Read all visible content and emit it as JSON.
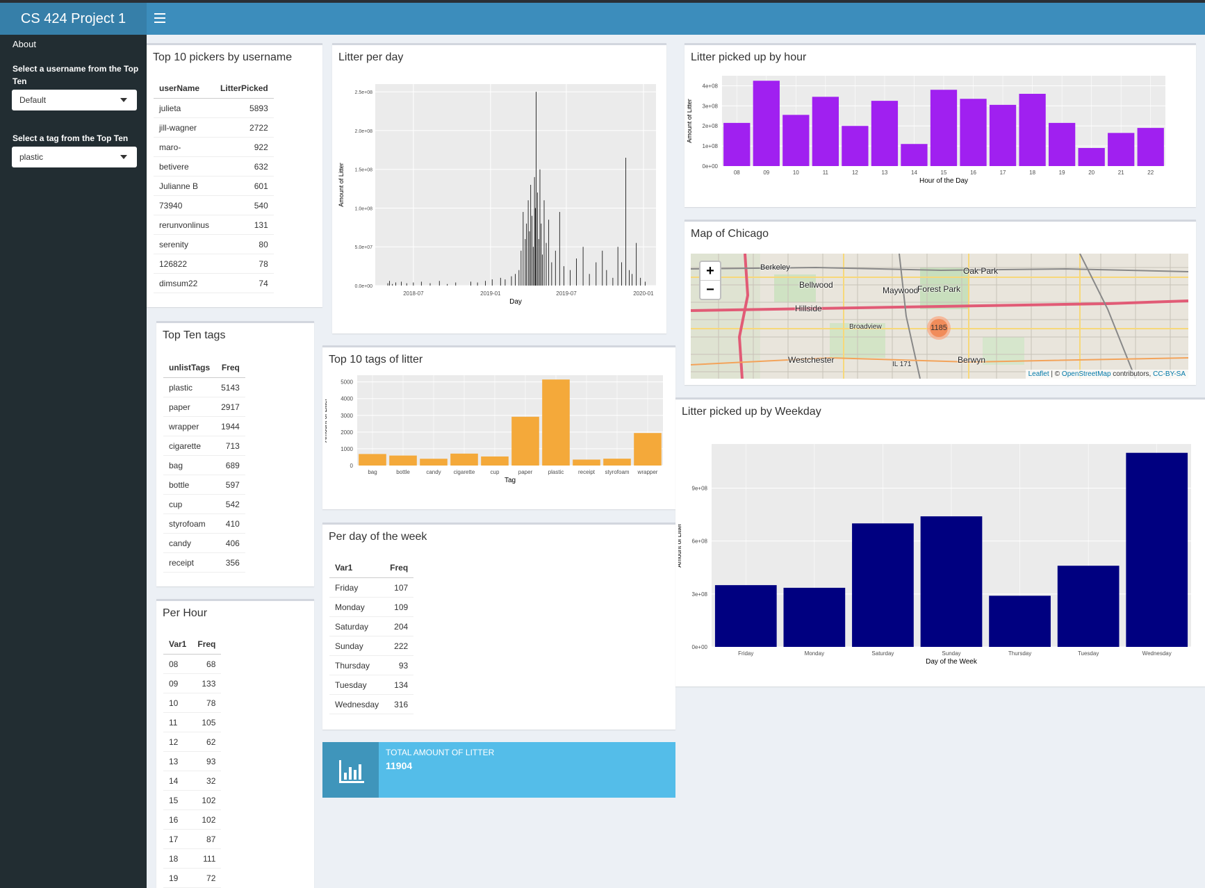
{
  "app": {
    "title": "CS 424 Project 1"
  },
  "sidebar": {
    "about": "About",
    "username_label": "Select a username from the Top Ten",
    "username_value": "Default",
    "tag_label": "Select a tag from the Top Ten",
    "tag_value": "plastic"
  },
  "pickers": {
    "title": "Top 10 pickers by username",
    "headers": [
      "userName",
      "LitterPicked"
    ],
    "rows": [
      [
        "julieta",
        "5893"
      ],
      [
        "jill-wagner",
        "2722"
      ],
      [
        "maro-",
        "922"
      ],
      [
        "betivere",
        "632"
      ],
      [
        "Julianne B",
        "601"
      ],
      [
        "73940",
        "540"
      ],
      [
        "rerunvonlinus",
        "131"
      ],
      [
        "serenity",
        "80"
      ],
      [
        "126822",
        "78"
      ],
      [
        "dimsum22",
        "74"
      ]
    ]
  },
  "tags": {
    "title": "Top Ten tags",
    "headers": [
      "unlistTags",
      "Freq"
    ],
    "rows": [
      [
        "plastic",
        "5143"
      ],
      [
        "paper",
        "2917"
      ],
      [
        "wrapper",
        "1944"
      ],
      [
        "cigarette",
        "713"
      ],
      [
        "bag",
        "689"
      ],
      [
        "bottle",
        "597"
      ],
      [
        "cup",
        "542"
      ],
      [
        "styrofoam",
        "410"
      ],
      [
        "candy",
        "406"
      ],
      [
        "receipt",
        "356"
      ]
    ]
  },
  "perhour": {
    "title": "Per Hour",
    "headers": [
      "Var1",
      "Freq"
    ],
    "rows": [
      [
        "08",
        "68"
      ],
      [
        "09",
        "133"
      ],
      [
        "10",
        "78"
      ],
      [
        "11",
        "105"
      ],
      [
        "12",
        "62"
      ],
      [
        "13",
        "93"
      ],
      [
        "14",
        "32"
      ],
      [
        "15",
        "102"
      ],
      [
        "16",
        "102"
      ],
      [
        "17",
        "87"
      ],
      [
        "18",
        "111"
      ],
      [
        "19",
        "72"
      ]
    ]
  },
  "perweekday": {
    "title": "Per day of the week",
    "headers": [
      "Var1",
      "Freq"
    ],
    "rows": [
      [
        "Friday",
        "107"
      ],
      [
        "Monday",
        "109"
      ],
      [
        "Saturday",
        "204"
      ],
      [
        "Sunday",
        "222"
      ],
      [
        "Thursday",
        "93"
      ],
      [
        "Tuesday",
        "134"
      ],
      [
        "Wednesday",
        "316"
      ]
    ]
  },
  "total": {
    "label": "TOTAL AMOUNT OF LITTER",
    "value": "11904",
    "icon": "bar-chart-icon"
  },
  "map": {
    "title": "Map of Chicago",
    "zoom_in": "+",
    "zoom_out": "−",
    "cluster_count": "1185",
    "places": [
      "Berkeley",
      "Oak Park",
      "Bellwood",
      "Maywood",
      "Forest Park",
      "Hillside",
      "Broadview",
      "Westchester",
      "Berwyn",
      "IL 171"
    ],
    "attribution": {
      "leaflet": "Leaflet",
      "sep": " | © ",
      "osm": "OpenStreetMap",
      "contrib": " contributors, ",
      "license": "CC-BY-SA"
    }
  },
  "chart_data": [
    {
      "type": "bar",
      "title": "Litter per day",
      "xlabel": "Day",
      "ylabel": "Amount of Litter",
      "ylim": [
        0,
        260000000
      ],
      "yticks": [
        "0.0e+00",
        "5.0e+07",
        "1.0e+08",
        "1.5e+08",
        "2.0e+08",
        "2.5e+08"
      ],
      "ytick_values": [
        0,
        50000000,
        100000000,
        150000000,
        200000000,
        250000000
      ],
      "xticks": [
        "2018-07",
        "2019-01",
        "2019-07",
        "2020-01"
      ],
      "x_start": "2018-04-01",
      "x_end": "2020-01-31",
      "color": "#000000",
      "spikes": [
        [
          "2018-05-01",
          3000000
        ],
        [
          "2018-05-05",
          6000000
        ],
        [
          "2018-05-12",
          2000000
        ],
        [
          "2018-05-20",
          4000000
        ],
        [
          "2018-06-02",
          5000000
        ],
        [
          "2018-06-15",
          3000000
        ],
        [
          "2018-07-01",
          4000000
        ],
        [
          "2018-07-20",
          5000000
        ],
        [
          "2018-08-10",
          3000000
        ],
        [
          "2018-09-01",
          6000000
        ],
        [
          "2018-09-20",
          2000000
        ],
        [
          "2018-10-10",
          4000000
        ],
        [
          "2018-11-15",
          5000000
        ],
        [
          "2018-12-01",
          4000000
        ],
        [
          "2018-12-20",
          6000000
        ],
        [
          "2019-01-05",
          8000000
        ],
        [
          "2019-01-25",
          10000000
        ],
        [
          "2019-02-05",
          8000000
        ],
        [
          "2019-02-20",
          12000000
        ],
        [
          "2019-03-01",
          15000000
        ],
        [
          "2019-03-10",
          20000000
        ],
        [
          "2019-03-15",
          45000000
        ],
        [
          "2019-03-20",
          95000000
        ],
        [
          "2019-03-25",
          60000000
        ],
        [
          "2019-03-28",
          80000000
        ],
        [
          "2019-04-01",
          110000000
        ],
        [
          "2019-04-04",
          70000000
        ],
        [
          "2019-04-07",
          130000000
        ],
        [
          "2019-04-10",
          90000000
        ],
        [
          "2019-04-13",
          50000000
        ],
        [
          "2019-04-16",
          140000000
        ],
        [
          "2019-04-18",
          100000000
        ],
        [
          "2019-04-20",
          250000000
        ],
        [
          "2019-04-23",
          120000000
        ],
        [
          "2019-04-26",
          60000000
        ],
        [
          "2019-04-29",
          150000000
        ],
        [
          "2019-05-02",
          80000000
        ],
        [
          "2019-05-05",
          40000000
        ],
        [
          "2019-05-09",
          110000000
        ],
        [
          "2019-05-14",
          55000000
        ],
        [
          "2019-05-20",
          85000000
        ],
        [
          "2019-05-27",
          30000000
        ],
        [
          "2019-06-05",
          45000000
        ],
        [
          "2019-06-15",
          95000000
        ],
        [
          "2019-06-25",
          25000000
        ],
        [
          "2019-07-10",
          20000000
        ],
        [
          "2019-07-25",
          35000000
        ],
        [
          "2019-08-10",
          50000000
        ],
        [
          "2019-08-25",
          15000000
        ],
        [
          "2019-09-10",
          30000000
        ],
        [
          "2019-09-25",
          45000000
        ],
        [
          "2019-10-05",
          20000000
        ],
        [
          "2019-10-20",
          10000000
        ],
        [
          "2019-11-01",
          50000000
        ],
        [
          "2019-11-10",
          30000000
        ],
        [
          "2019-11-20",
          165000000
        ],
        [
          "2019-11-28",
          20000000
        ],
        [
          "2019-12-05",
          15000000
        ],
        [
          "2019-12-15",
          55000000
        ],
        [
          "2019-12-25",
          10000000
        ],
        [
          "2020-01-05",
          5000000
        ]
      ]
    },
    {
      "type": "bar",
      "title": "Litter picked up by hour",
      "xlabel": "Hour of the Day",
      "ylabel": "Amount of Litter",
      "ylim": [
        0,
        450000000
      ],
      "yticks": [
        "0e+00",
        "1e+08",
        "2e+08",
        "3e+08",
        "4e+08"
      ],
      "ytick_values": [
        0,
        100000000,
        200000000,
        300000000,
        400000000
      ],
      "categories": [
        "08",
        "09",
        "10",
        "11",
        "12",
        "13",
        "14",
        "15",
        "16",
        "17",
        "18",
        "19",
        "20",
        "21",
        "22"
      ],
      "values": [
        215000000,
        425000000,
        255000000,
        345000000,
        200000000,
        325000000,
        110000000,
        380000000,
        335000000,
        305000000,
        360000000,
        215000000,
        90000000,
        165000000,
        190000000
      ],
      "color": "#a020f0"
    },
    {
      "type": "bar",
      "title": "Top 10 tags of litter",
      "xlabel": "Tag",
      "ylabel": "Amount of Litter",
      "ylim": [
        0,
        5400
      ],
      "yticks": [
        "0",
        "1000",
        "2000",
        "3000",
        "4000",
        "5000"
      ],
      "ytick_values": [
        0,
        1000,
        2000,
        3000,
        4000,
        5000
      ],
      "categories": [
        "bag",
        "bottle",
        "candy",
        "cigarette",
        "cup",
        "paper",
        "plastic",
        "receipt",
        "styrofoam",
        "wrapper"
      ],
      "values": [
        689,
        597,
        406,
        713,
        542,
        2917,
        5143,
        356,
        410,
        1944
      ],
      "color": "#f4a93a"
    },
    {
      "type": "bar",
      "title": "Litter picked up by Weekday",
      "xlabel": "Day of the Week",
      "ylabel": "Amount of Litter",
      "ylim": [
        0,
        1150000000
      ],
      "yticks": [
        "0e+00",
        "3e+08",
        "6e+08",
        "9e+08"
      ],
      "ytick_values": [
        0,
        300000000,
        600000000,
        900000000
      ],
      "categories": [
        "Friday",
        "Monday",
        "Saturday",
        "Sunday",
        "Thursday",
        "Tuesday",
        "Wednesday"
      ],
      "values": [
        350000000,
        335000000,
        700000000,
        740000000,
        290000000,
        460000000,
        1100000000
      ],
      "color": "#000080"
    }
  ]
}
